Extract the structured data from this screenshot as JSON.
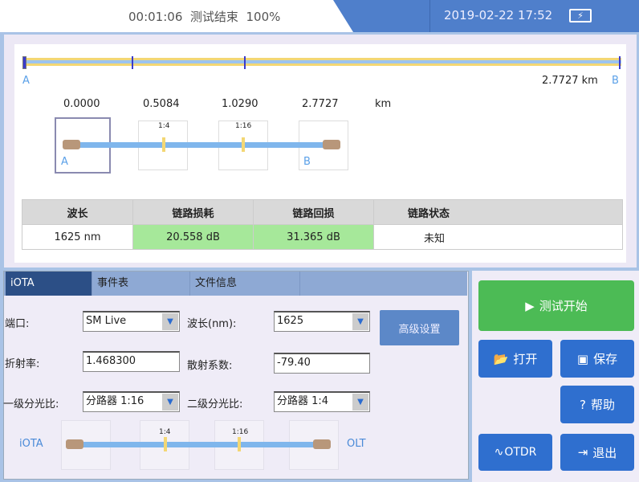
{
  "header": {
    "elapsed": "00:01:06",
    "status": "测试结束",
    "progress": "100%",
    "datetime": "2019-02-22 17:52",
    "battery_icon": "battery-charging-icon"
  },
  "overview": {
    "start_label": "A",
    "end_label": "B",
    "length": "2.7727 km"
  },
  "events": {
    "positions": [
      "0.0000",
      "0.5084",
      "1.0290",
      "2.7727"
    ],
    "unit": "km",
    "split1": "1:4",
    "split2": "1:16",
    "end_a": "A",
    "end_b": "B"
  },
  "result_table": {
    "headers": [
      "波长",
      "链路损耗",
      "链路回损",
      "链路状态"
    ],
    "row": [
      "1625 nm",
      "20.558 dB",
      "31.365 dB",
      "未知"
    ],
    "highlight_color": "#a6e89a"
  },
  "tabs": [
    "iOTA",
    "事件表",
    "文件信息"
  ],
  "form": {
    "port_label": "端口:",
    "port_value": "SM Live",
    "wavelength_label": "波长(nm):",
    "wavelength_value": "1625",
    "ior_label": "折射率:",
    "ior_value": "1.468300",
    "backscatter_label": "散射系数:",
    "backscatter_value": "-79.40",
    "split1_label": "一级分光比:",
    "split1_value": "分路器 1:16",
    "split2_label": "二级分光比:",
    "split2_value": "分路器 1:4",
    "advanced_label": "高级设置"
  },
  "topology": {
    "left": "iOTA",
    "right": "OLT",
    "split1": "1:4",
    "split2": "1:16"
  },
  "buttons": {
    "start": "测试开始",
    "open": "打开",
    "save": "保存",
    "help": "帮助",
    "otdr": "OTDR",
    "exit": "退出"
  },
  "colors": {
    "accent": "#4f7fcb",
    "start": "#4cbb55",
    "button": "#2f6fcf"
  }
}
